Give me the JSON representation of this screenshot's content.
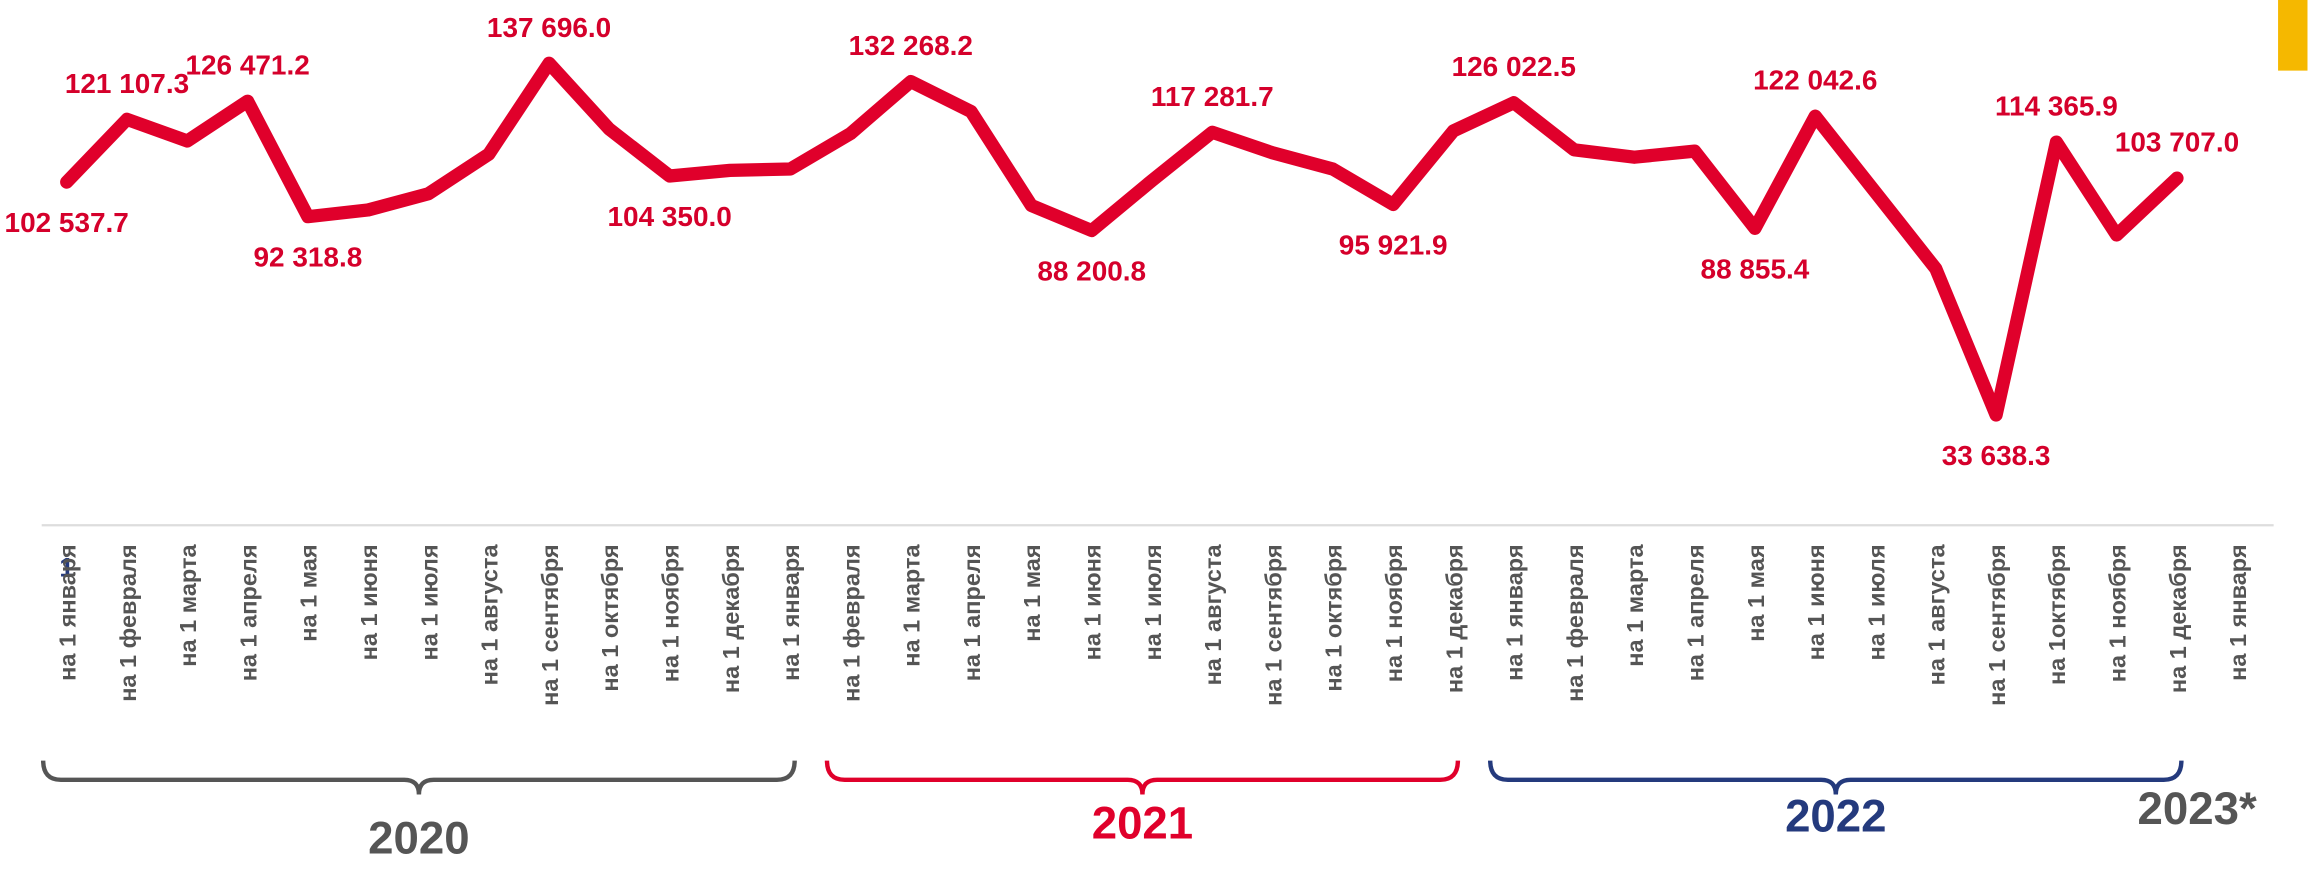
{
  "chart_data": {
    "type": "line",
    "categories": [
      "на 1 января",
      "на 1 февраля",
      "на 1 марта",
      "на 1 апреля",
      "на 1 мая",
      "на 1 июня",
      "на 1 июля",
      "на 1 августа",
      "на 1 сентября",
      "на 1 октября",
      "на 1 ноября",
      "на 1 декабря",
      "на 1 января",
      "на 1 февраля",
      "на 1 марта",
      "на 1 апреля",
      "на 1 мая",
      "на 1 июня",
      "на 1 июля",
      "на 1 августа",
      "на 1 сентября",
      "на 1 октября",
      "на 1 ноября",
      "на 1 декабря",
      "на 1 января",
      "на 1 февраля",
      "на 1 марта",
      "на 1 апреля",
      "на 1 мая",
      "на 1 июня",
      "на 1 июля",
      "на 1 августа",
      "на 1 сентября",
      "на 1октября",
      "на 1 ноября",
      "на 1 декабря",
      "на 1 января"
    ],
    "series": [
      {
        "color": "#e0002b",
        "values": [
          102537.7,
          121107.3,
          114700,
          126471.2,
          92318.8,
          94300,
          99100,
          110800,
          137696.0,
          118200,
          104350.0,
          106000,
          106400,
          116900,
          132268.2,
          123400,
          95600,
          88200.8,
          103000,
          117281.7,
          111200,
          106400,
          95921.9,
          117700,
          126022.5,
          112100,
          109900,
          111700,
          88855.4,
          122042.6,
          99500,
          76900,
          33638.3,
          114365.9,
          86900,
          103707.0,
          null
        ],
        "value_labels": [
          "102 537.7",
          "121 107.3",
          null,
          "126 471.2",
          "92 318.8",
          null,
          null,
          null,
          "137 696.0",
          null,
          "104 350.0",
          null,
          null,
          null,
          "132 268.2",
          null,
          null,
          "88 200.8",
          null,
          "117 281.7",
          null,
          null,
          "95 921.9",
          null,
          "126 022.5",
          null,
          null,
          null,
          "88 855.4",
          "122 042.6",
          null,
          null,
          "33 638.3",
          "114 365.9",
          null,
          "103 707.0",
          null
        ]
      }
    ],
    "ylim": [
      20000,
      140000
    ],
    "groups": [
      {
        "label": "2020",
        "color": "#555555"
      },
      {
        "label": "2021",
        "color": "#e0002b"
      },
      {
        "label": "2022",
        "color": "#243a7d"
      },
      {
        "label": "2023*",
        "color": "#555555"
      }
    ],
    "annotation": "1"
  }
}
